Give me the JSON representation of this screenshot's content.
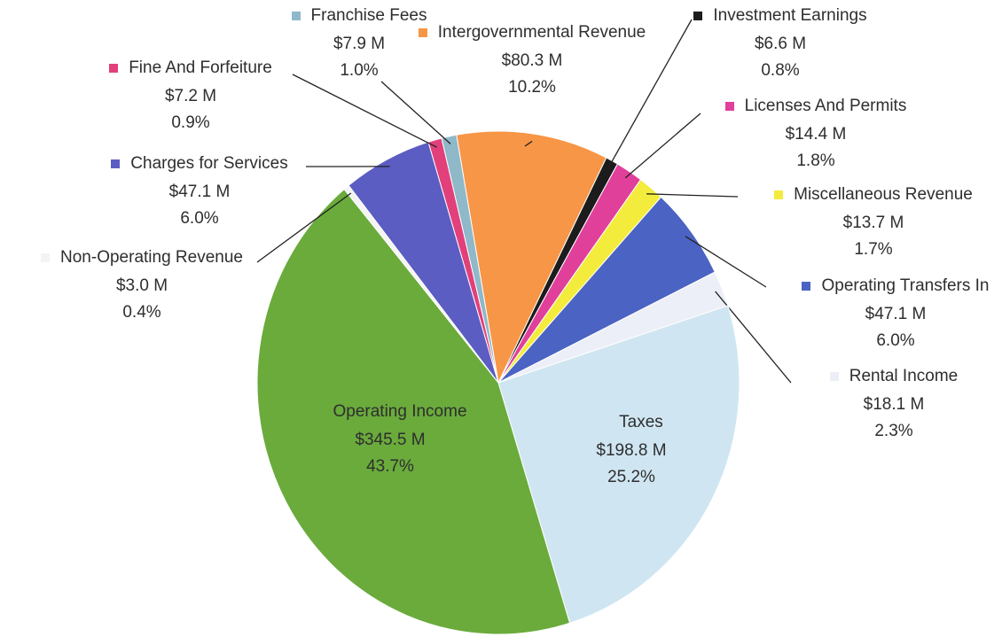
{
  "chart_data": {
    "type": "pie",
    "categories": [
      "Intergovernmental Revenue",
      "Investment Earnings",
      "Licenses And Permits",
      "Miscellaneous Revenue",
      "Operating Transfers In",
      "Rental Income",
      "Taxes",
      "Operating Income",
      "Non-Operating Revenue",
      "Charges for Services",
      "Fine And Forfeiture",
      "Franchise Fees"
    ],
    "values": [
      80.3,
      6.6,
      14.4,
      13.7,
      47.1,
      18.1,
      198.8,
      345.5,
      3.0,
      47.1,
      7.2,
      7.9
    ],
    "value_labels": [
      "$80.3 M",
      "$6.6 M",
      "$14.4 M",
      "$13.7 M",
      "$47.1 M",
      "$18.1 M",
      "$198.8 M",
      "$345.5 M",
      "$3.0 M",
      "$47.1 M",
      "$7.2 M",
      "$7.9 M"
    ],
    "percent_labels": [
      "10.2%",
      "0.8%",
      "1.8%",
      "1.7%",
      "6.0%",
      "2.3%",
      "25.2%",
      "43.7%",
      "0.4%",
      "6.0%",
      "0.9%",
      "1.0%"
    ],
    "colors": [
      "#f79646",
      "#1c1c1c",
      "#e0409a",
      "#f3ec3c",
      "#4b63c2",
      "#eceff7",
      "#cfe6f2",
      "#6aab3c",
      "#f4f4f4",
      "#5b5dc2",
      "#e2407a",
      "#8fb8c8"
    ]
  }
}
